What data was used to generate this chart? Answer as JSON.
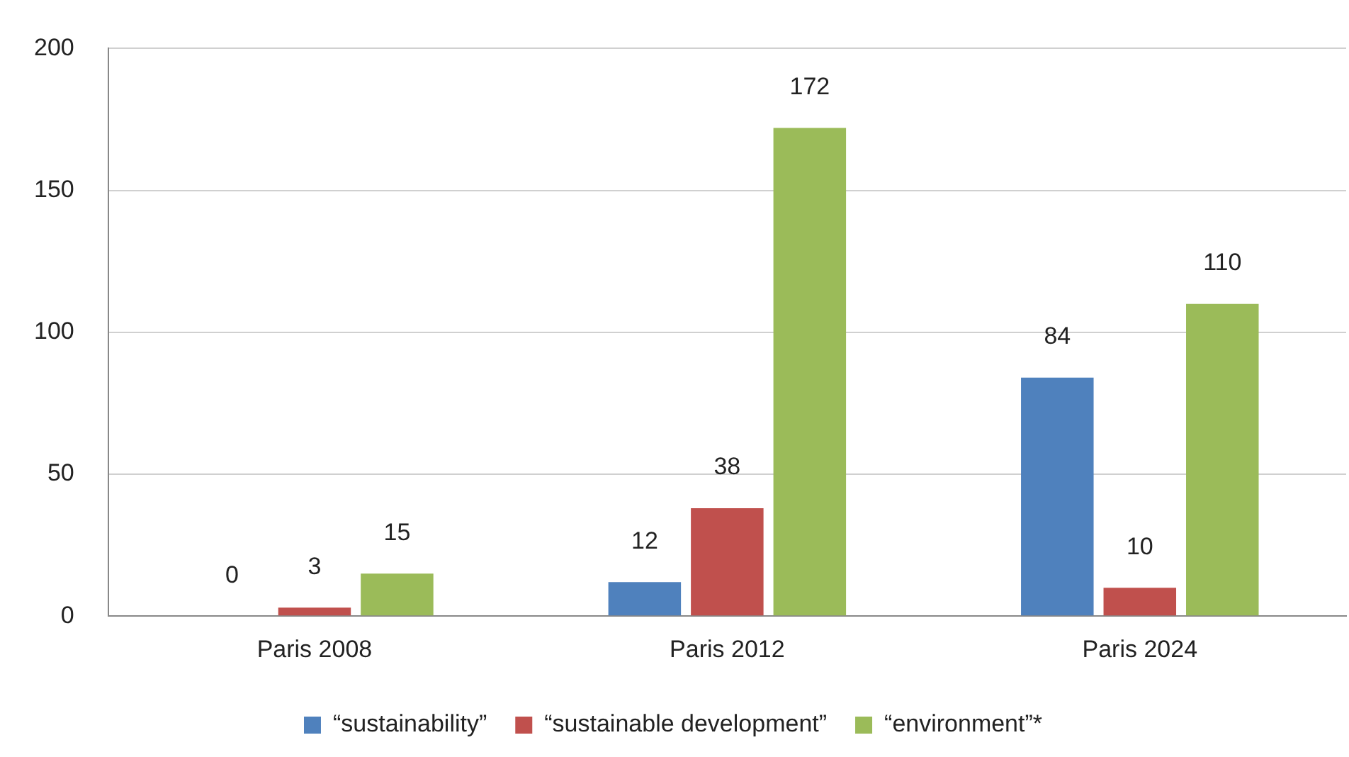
{
  "chart_data": {
    "type": "bar",
    "categories": [
      "Paris 2008",
      "Paris 2012",
      "Paris 2024"
    ],
    "series": [
      {
        "name": "“sustainability”",
        "color": "#4f81bd",
        "values": [
          0,
          12,
          84
        ],
        "value_labels": [
          null,
          "12",
          "84"
        ]
      },
      {
        "name": "“sustainable development”",
        "color": "#c0504d",
        "values": [
          3,
          38,
          10
        ],
        "value_labels": [
          "3",
          "38",
          "10"
        ]
      },
      {
        "name": "“environment”*",
        "color": "#9bbb59",
        "values": [
          15,
          172,
          110
        ],
        "value_labels": [
          "15",
          "172",
          "110"
        ]
      }
    ],
    "annotations": [
      "0"
    ],
    "ylim": [
      0,
      200
    ],
    "yticks": [
      0,
      50,
      100,
      150,
      200
    ],
    "grid": "y",
    "legend": "bottom"
  }
}
